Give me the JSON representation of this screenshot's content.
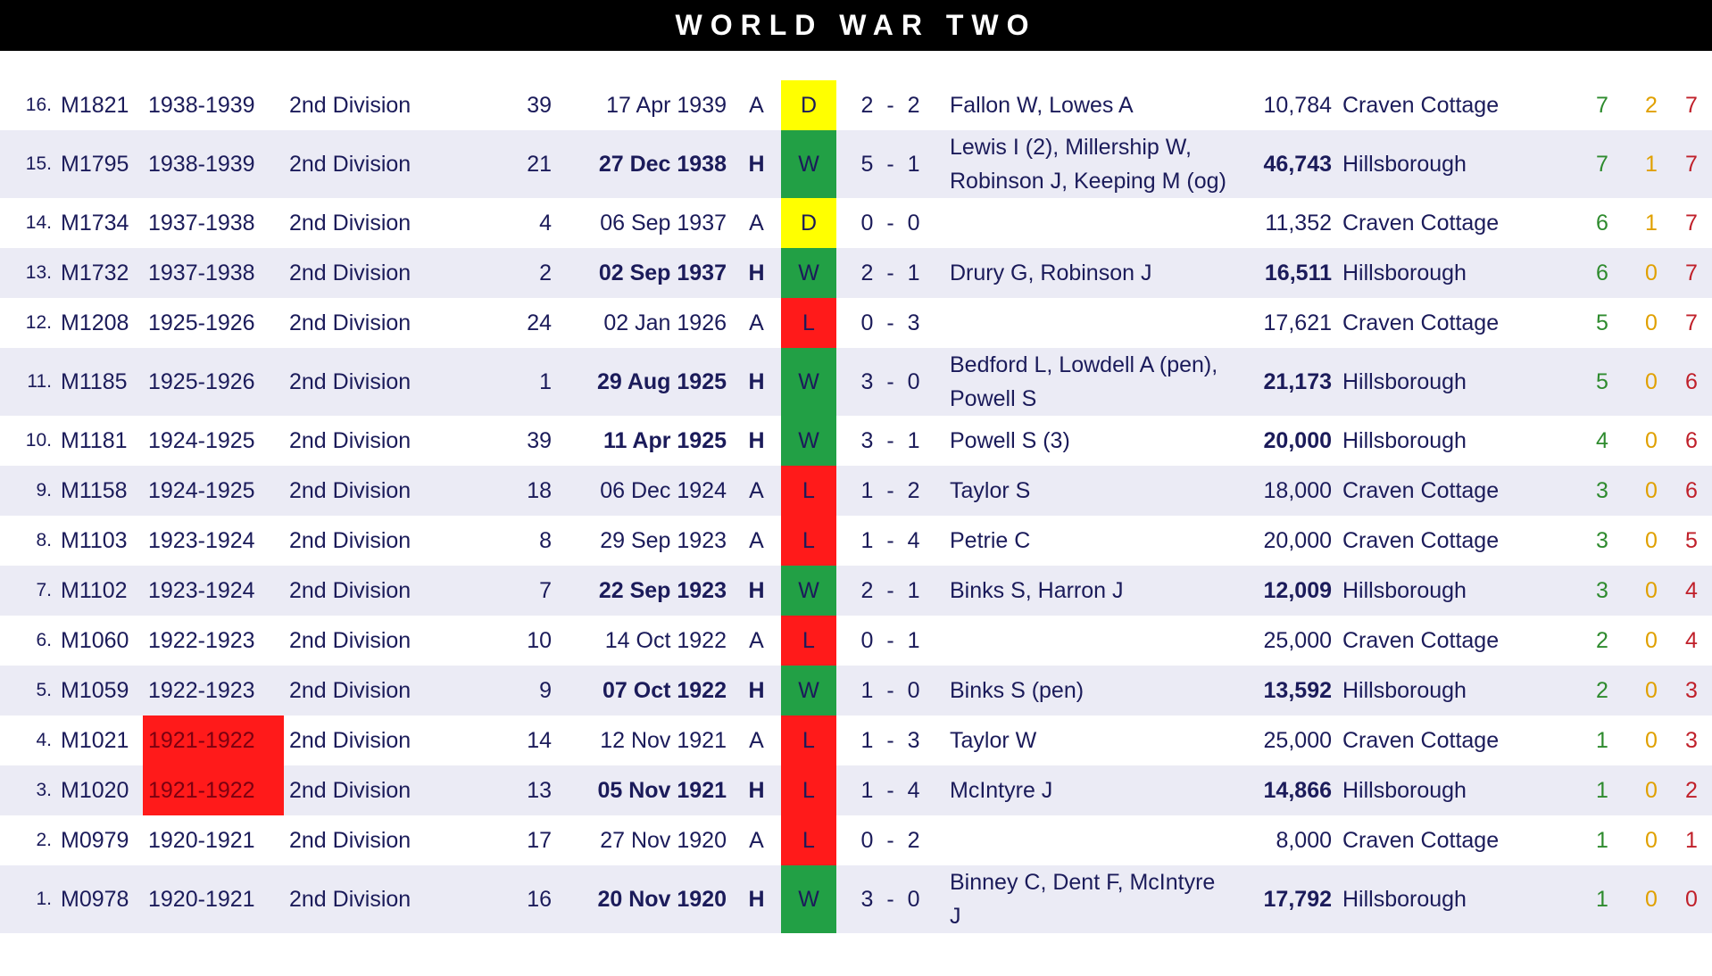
{
  "header": {
    "title": "WORLD WAR TWO"
  },
  "rows": [
    {
      "num": "16.",
      "match": "M1821",
      "season": "1938-1939",
      "division": "2nd Division",
      "pos": 39,
      "date": "17 Apr 1939",
      "venue": "A",
      "result": "D",
      "result_color": "#ffff00",
      "score": "2 - 2",
      "scorers": "Fallon W, Lowes A",
      "attendance": "10,784",
      "ground": "Craven Cottage",
      "w": 7,
      "d": 2,
      "l": 7
    },
    {
      "num": "15.",
      "match": "M1795",
      "season": "1938-1939",
      "division": "2nd Division",
      "pos": 21,
      "date": "27 Dec 1938",
      "venue": "H",
      "bold": true,
      "result": "W",
      "result_color": "#22a045",
      "score": "5 - 1",
      "scorers": "Lewis I (2), Millership W, Robinson J, Keeping M (og)",
      "attendance": "46,743",
      "ground": "Hillsborough",
      "w": 7,
      "d": 1,
      "l": 7
    },
    {
      "num": "14.",
      "match": "M1734",
      "season": "1937-1938",
      "division": "2nd Division",
      "pos": 4,
      "date": "06 Sep 1937",
      "venue": "A",
      "result": "D",
      "result_color": "#ffff00",
      "score": "0 - 0",
      "attendance": "11,352",
      "ground": "Craven Cottage",
      "w": 6,
      "d": 1,
      "l": 7
    },
    {
      "num": "13.",
      "match": "M1732",
      "season": "1937-1938",
      "division": "2nd Division",
      "pos": 2,
      "date": "02 Sep 1937",
      "venue": "H",
      "bold": true,
      "result": "W",
      "result_color": "#22a045",
      "score": "2 - 1",
      "scorers": "Drury G, Robinson J",
      "attendance": "16,511",
      "ground": "Hillsborough",
      "w": 6,
      "d": 0,
      "l": 7
    },
    {
      "num": "12.",
      "match": "M1208",
      "season": "1925-1926",
      "division": "2nd Division",
      "pos": 24,
      "date": "02 Jan 1926",
      "venue": "A",
      "result": "L",
      "result_color": "#ff1a1a",
      "score": "0 - 3",
      "attendance": "17,621",
      "ground": "Craven Cottage",
      "w": 5,
      "d": 0,
      "l": 7
    },
    {
      "num": "11.",
      "match": "M1185",
      "season": "1925-1926",
      "division": "2nd Division",
      "pos": 1,
      "date": "29 Aug 1925",
      "venue": "H",
      "bold": true,
      "result": "W",
      "result_color": "#22a045",
      "score": "3 - 0",
      "scorers": "Bedford L, Lowdell A (pen), Powell S",
      "attendance": "21,173",
      "ground": "Hillsborough",
      "w": 5,
      "d": 0,
      "l": 6
    },
    {
      "num": "10.",
      "match": "M1181",
      "season": "1924-1925",
      "division": "2nd Division",
      "pos": 39,
      "date": "11 Apr 1925",
      "venue": "H",
      "bold": true,
      "result": "W",
      "result_color": "#22a045",
      "score": "3 - 1",
      "scorers": "Powell S (3)",
      "attendance": "20,000",
      "ground": "Hillsborough",
      "w": 4,
      "d": 0,
      "l": 6
    },
    {
      "num": "9.",
      "match": "M1158",
      "season": "1924-1925",
      "division": "2nd Division",
      "pos": 18,
      "date": "06 Dec 1924",
      "venue": "A",
      "result": "L",
      "result_color": "#ff1a1a",
      "score": "1 - 2",
      "scorers": "Taylor S",
      "attendance": "18,000",
      "ground": "Craven Cottage",
      "w": 3,
      "d": 0,
      "l": 6
    },
    {
      "num": "8.",
      "match": "M1103",
      "season": "1923-1924",
      "division": "2nd Division",
      "pos": 8,
      "date": "29 Sep 1923",
      "venue": "A",
      "result": "L",
      "result_color": "#ff1a1a",
      "score": "1 - 4",
      "scorers": "Petrie C",
      "attendance": "20,000",
      "ground": "Craven Cottage",
      "w": 3,
      "d": 0,
      "l": 5
    },
    {
      "num": "7.",
      "match": "M1102",
      "season": "1923-1924",
      "division": "2nd Division",
      "pos": 7,
      "date": "22 Sep 1923",
      "venue": "H",
      "bold": true,
      "result": "W",
      "result_color": "#22a045",
      "score": "2 - 1",
      "scorers": "Binks S, Harron J",
      "attendance": "12,009",
      "ground": "Hillsborough",
      "w": 3,
      "d": 0,
      "l": 4
    },
    {
      "num": "6.",
      "match": "M1060",
      "season": "1922-1923",
      "division": "2nd Division",
      "pos": 10,
      "date": "14 Oct 1922",
      "venue": "A",
      "result": "L",
      "result_color": "#ff1a1a",
      "score": "0 - 1",
      "attendance": "25,000",
      "ground": "Craven Cottage",
      "w": 2,
      "d": 0,
      "l": 4
    },
    {
      "num": "5.",
      "match": "M1059",
      "season": "1922-1923",
      "division": "2nd Division",
      "pos": 9,
      "date": "07 Oct 1922",
      "venue": "H",
      "bold": true,
      "result": "W",
      "result_color": "#22a045",
      "score": "1 - 0",
      "scorers": "Binks S (pen)",
      "attendance": "13,592",
      "ground": "Hillsborough",
      "w": 2,
      "d": 0,
      "l": 3
    },
    {
      "num": "4.",
      "match": "M1021",
      "season": "1921-1922",
      "season_highlight": "#ff1a1a",
      "division": "2nd Division",
      "pos": 14,
      "date": "12 Nov 1921",
      "venue": "A",
      "result": "L",
      "result_color": "#ff1a1a",
      "score": "1 - 3",
      "scorers": "Taylor W",
      "attendance": "25,000",
      "ground": "Craven Cottage",
      "w": 1,
      "d": 0,
      "l": 3
    },
    {
      "num": "3.",
      "match": "M1020",
      "season": "1921-1922",
      "season_highlight": "#ff1a1a",
      "division": "2nd Division",
      "pos": 13,
      "date": "05 Nov 1921",
      "venue": "H",
      "bold": true,
      "result": "L",
      "result_color": "#ff1a1a",
      "score": "1 - 4",
      "scorers": "McIntyre J",
      "attendance": "14,866",
      "ground": "Hillsborough",
      "w": 1,
      "d": 0,
      "l": 2
    },
    {
      "num": "2.",
      "match": "M0979",
      "season": "1920-1921",
      "division": "2nd Division",
      "pos": 17,
      "date": "27 Nov 1920",
      "venue": "A",
      "result": "L",
      "result_color": "#ff1a1a",
      "score": "0 - 2",
      "attendance": "8,000",
      "ground": "Craven Cottage",
      "w": 1,
      "d": 0,
      "l": 1
    },
    {
      "num": "1.",
      "match": "M0978",
      "season": "1920-1921",
      "division": "2nd Division",
      "pos": 16,
      "date": "20 Nov 1920",
      "venue": "H",
      "bold": true,
      "result": "W",
      "result_color": "#22a045",
      "score": "3 - 0",
      "scorers": "Binney C, Dent F, McIntyre J",
      "attendance": "17,792",
      "ground": "Hillsborough",
      "w": 1,
      "d": 0,
      "l": 0
    }
  ]
}
